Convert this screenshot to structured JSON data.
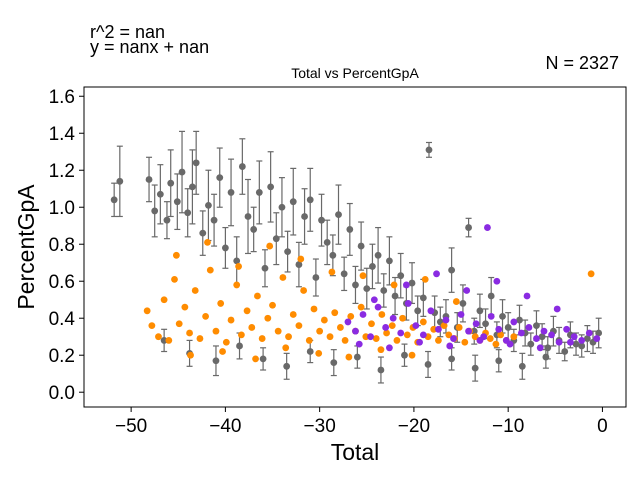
{
  "chart_data": {
    "type": "scatter",
    "title": "Total vs PercentGpA",
    "xlabel": "Total",
    "ylabel": "PercentGpA",
    "xlim": [
      -55,
      2.5
    ],
    "ylim": [
      -0.08,
      1.65
    ],
    "xticks": [
      -50,
      -40,
      -30,
      -20,
      -10,
      0
    ],
    "yticks": [
      0.0,
      0.2,
      0.4,
      0.6,
      0.8,
      1.0,
      1.2,
      1.4,
      1.6
    ],
    "annotations": {
      "r2": "r^2 = nan",
      "fit": "y = nanx + nan",
      "n": "N = 2327"
    },
    "grid": false,
    "series": [
      {
        "color": "#696969",
        "error_bars": true,
        "x": [
          -51.8,
          -51.2,
          -48.1,
          -47.5,
          -46.9,
          -46.2,
          -45.8,
          -45.1,
          -44.6,
          -44.0,
          -43.5,
          -43.1,
          -42.4,
          -41.8,
          -41.2,
          -40.6,
          -40.0,
          -39.4,
          -38.8,
          -38.2,
          -37.6,
          -37.0,
          -36.4,
          -35.8,
          -35.2,
          -34.6,
          -34.0,
          -33.4,
          -32.8,
          -32.2,
          -31.6,
          -31.0,
          -30.4,
          -29.8,
          -29.2,
          -28.6,
          -28.0,
          -27.4,
          -26.8,
          -26.2,
          -25.6,
          -25.0,
          -24.4,
          -23.8,
          -23.2,
          -22.6,
          -22.0,
          -21.4,
          -20.8,
          -20.2,
          -19.6,
          -19.0,
          -18.4,
          -17.8,
          -17.2,
          -16.6,
          -16.0,
          -15.4,
          -14.8,
          -14.2,
          -13.6,
          -13.0,
          -12.4,
          -11.8,
          -11.2,
          -10.6,
          -10.0,
          -9.4,
          -8.8,
          -8.2,
          -7.6,
          -7.0,
          -6.4,
          -5.8,
          -5.2,
          -4.6,
          -4.0,
          -3.4,
          -2.8,
          -2.2,
          -1.6,
          -1.0,
          -0.4,
          -46.5,
          -43.8,
          -41.0,
          -38.5,
          -36.0,
          -33.5,
          -31.0,
          -28.5,
          -26.0,
          -23.5,
          -21.0,
          -18.5,
          -16.0,
          -13.5,
          -11.0,
          -8.5,
          -6.0
        ],
        "y": [
          1.04,
          1.14,
          1.15,
          0.98,
          1.07,
          0.93,
          1.13,
          1.03,
          1.19,
          0.97,
          1.11,
          1.24,
          0.86,
          1.01,
          0.93,
          1.16,
          0.78,
          1.08,
          0.71,
          1.22,
          0.95,
          0.88,
          1.08,
          0.67,
          1.11,
          0.83,
          1.0,
          0.76,
          1.03,
          0.69,
          0.95,
          1.04,
          0.62,
          0.93,
          0.81,
          0.74,
          0.96,
          0.64,
          0.88,
          0.58,
          0.79,
          0.56,
          0.68,
          0.74,
          0.55,
          0.71,
          0.52,
          0.63,
          0.48,
          0.59,
          0.44,
          0.51,
          1.31,
          0.43,
          0.38,
          0.41,
          0.66,
          0.35,
          0.48,
          0.89,
          0.33,
          0.44,
          0.37,
          0.52,
          0.31,
          0.41,
          0.35,
          0.28,
          0.39,
          0.32,
          0.26,
          0.36,
          0.3,
          0.24,
          0.33,
          0.28,
          0.22,
          0.31,
          0.26,
          0.25,
          0.29,
          0.27,
          0.32,
          0.28,
          0.21,
          0.17,
          0.25,
          0.18,
          0.14,
          0.22,
          0.16,
          0.19,
          0.12,
          0.2,
          0.15,
          0.18,
          0.13,
          0.17,
          0.14,
          0.19
        ],
        "err": [
          0.09,
          0.19,
          0.12,
          0.14,
          0.16,
          0.1,
          0.18,
          0.15,
          0.22,
          0.13,
          0.2,
          0.17,
          0.12,
          0.19,
          0.14,
          0.16,
          0.11,
          0.18,
          0.13,
          0.15,
          0.2,
          0.12,
          0.17,
          0.1,
          0.19,
          0.14,
          0.16,
          0.11,
          0.18,
          0.12,
          0.15,
          0.17,
          0.1,
          0.14,
          0.12,
          0.11,
          0.16,
          0.09,
          0.14,
          0.1,
          0.13,
          0.11,
          0.12,
          0.15,
          0.09,
          0.13,
          0.1,
          0.12,
          0.09,
          0.11,
          0.08,
          0.1,
          0.04,
          0.09,
          0.08,
          0.09,
          0.12,
          0.08,
          0.1,
          0.05,
          0.07,
          0.09,
          0.08,
          0.1,
          0.07,
          0.09,
          0.08,
          0.06,
          0.08,
          0.07,
          0.06,
          0.08,
          0.07,
          0.06,
          0.08,
          0.07,
          0.05,
          0.07,
          0.06,
          0.06,
          0.07,
          0.06,
          0.08,
          0.06,
          0.07,
          0.08,
          0.07,
          0.06,
          0.07,
          0.06,
          0.07,
          0.06,
          0.07,
          0.06,
          0.07,
          0.06,
          0.07,
          0.06,
          0.07,
          0.06
        ]
      },
      {
        "color": "#ff8c00",
        "error_bars": false,
        "x": [
          -48.3,
          -47.8,
          -47.1,
          -46.5,
          -46.0,
          -45.4,
          -44.9,
          -44.3,
          -43.8,
          -43.2,
          -42.7,
          -42.1,
          -41.6,
          -41.0,
          -40.5,
          -39.9,
          -39.4,
          -38.8,
          -38.3,
          -37.7,
          -37.2,
          -36.6,
          -36.1,
          -35.5,
          -35.0,
          -34.4,
          -33.9,
          -33.3,
          -32.8,
          -32.2,
          -31.7,
          -31.1,
          -30.6,
          -30.0,
          -29.5,
          -28.9,
          -28.4,
          -27.8,
          -27.3,
          -26.7,
          -26.2,
          -25.6,
          -25.1,
          -24.5,
          -24.0,
          -23.4,
          -22.9,
          -22.3,
          -21.8,
          -21.2,
          -20.7,
          -20.1,
          -19.6,
          -19.0,
          -18.5,
          -17.9,
          -17.4,
          -16.8,
          -16.3,
          -15.7,
          -15.2,
          -14.6,
          -14.1,
          -13.5,
          -13.0,
          -12.4,
          -11.9,
          -11.3,
          -10.8,
          -10.2,
          -45.2,
          -41.9,
          -38.6,
          -35.3,
          -32.0,
          -28.7,
          -25.4,
          -22.1,
          -18.8,
          -15.5,
          -1.2,
          -9.4,
          -43.7,
          -40.3,
          -36.8,
          -33.6,
          -30.1,
          -26.9,
          -23.5,
          -20.2
        ],
        "y": [
          0.44,
          0.36,
          0.3,
          0.5,
          0.28,
          0.61,
          0.37,
          0.46,
          0.32,
          0.55,
          0.29,
          0.41,
          0.66,
          0.33,
          0.48,
          0.27,
          0.39,
          0.58,
          0.31,
          0.44,
          0.35,
          0.52,
          0.29,
          0.4,
          0.47,
          0.33,
          0.62,
          0.3,
          0.42,
          0.36,
          0.55,
          0.28,
          0.45,
          0.33,
          0.39,
          0.3,
          0.43,
          0.35,
          0.28,
          0.41,
          0.33,
          0.46,
          0.3,
          0.37,
          0.29,
          0.42,
          0.32,
          0.36,
          0.28,
          0.4,
          0.31,
          0.35,
          0.27,
          0.38,
          0.3,
          0.34,
          0.28,
          0.36,
          0.31,
          0.29,
          0.35,
          0.27,
          0.33,
          0.3,
          0.28,
          0.32,
          0.29,
          0.26,
          0.31,
          0.28,
          0.74,
          0.81,
          0.68,
          0.79,
          0.72,
          0.65,
          0.63,
          0.58,
          0.61,
          0.49,
          0.64,
          0.3,
          0.2,
          0.22,
          0.18,
          0.24,
          0.21,
          0.19,
          0.23,
          0.2
        ]
      },
      {
        "color": "#8a2be2",
        "error_bars": false,
        "x": [
          -27.0,
          -26.2,
          -25.4,
          -24.6,
          -23.8,
          -23.0,
          -22.2,
          -21.4,
          -20.6,
          -19.8,
          -19.0,
          -18.2,
          -17.4,
          -16.6,
          -15.8,
          -15.0,
          -14.2,
          -13.4,
          -12.6,
          -11.8,
          -11.0,
          -10.2,
          -9.4,
          -8.6,
          -7.8,
          -7.0,
          -6.2,
          -5.4,
          -4.6,
          -3.8,
          -3.0,
          -2.2,
          -1.4,
          -0.6,
          -25.8,
          -22.6,
          -19.4,
          -16.2,
          -13.0,
          -9.8,
          -6.6,
          -3.4,
          -20.8,
          -17.6,
          -14.4,
          -11.2,
          -8.0,
          -24.2,
          -12.2,
          -4.8
        ],
        "y": [
          0.38,
          0.33,
          0.42,
          0.3,
          0.46,
          0.35,
          0.4,
          0.32,
          0.48,
          0.36,
          0.31,
          0.44,
          0.34,
          0.39,
          0.29,
          0.42,
          0.33,
          0.37,
          0.3,
          0.41,
          0.34,
          0.28,
          0.38,
          0.32,
          0.35,
          0.29,
          0.33,
          0.31,
          0.27,
          0.34,
          0.3,
          0.28,
          0.32,
          0.29,
          0.26,
          0.24,
          0.27,
          0.25,
          0.28,
          0.26,
          0.24,
          0.27,
          0.58,
          0.64,
          0.55,
          0.6,
          0.52,
          0.5,
          0.89,
          0.45
        ]
      }
    ]
  }
}
